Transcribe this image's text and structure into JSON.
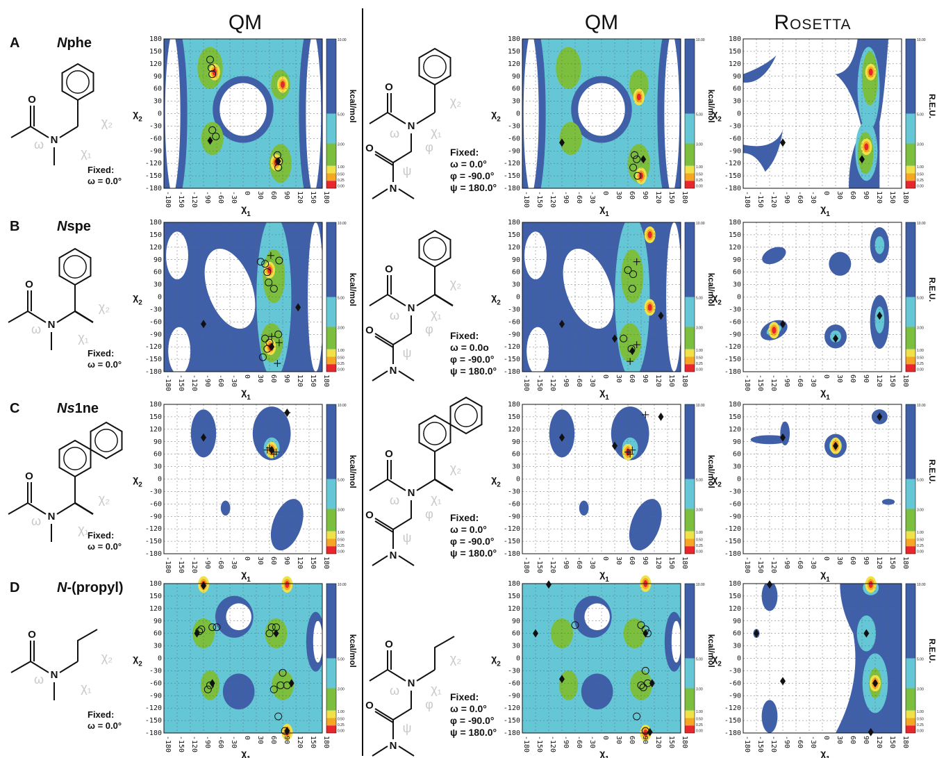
{
  "headers": {
    "qm_left": "QM",
    "qm_right": "QM",
    "rosetta": "Rosetta"
  },
  "rows": [
    {
      "label": "A",
      "name": "Nphe",
      "name_italic": "N",
      "name_rest": "phe",
      "fixed_left": [
        "Fixed:",
        "ω = 0.0°"
      ],
      "fixed_right": [
        "Fixed:",
        "ω = 0.0°",
        "φ = -90.0°",
        "ψ = 180.0°"
      ]
    },
    {
      "label": "B",
      "name": "Nspe",
      "name_italic": "N",
      "name_rest": "spe",
      "fixed_left": [
        "Fixed:",
        "ω = 0.0°"
      ],
      "fixed_right": [
        "Fixed:",
        "ω = 0.0o",
        "φ = -90.0°",
        "ψ = 180.0°"
      ]
    },
    {
      "label": "C",
      "name": "Ns1ne",
      "name_italic": "Ns",
      "name_rest": "1ne",
      "fixed_left": [
        "Fixed:",
        "ω = 0.0°"
      ],
      "fixed_right": [
        "Fixed:",
        "ω = 0.0°",
        "φ = -90.0°",
        "ψ = 180.0°"
      ]
    },
    {
      "label": "D",
      "name": "N-(propyl)",
      "name_italic": "N",
      "name_rest": "-(propyl)",
      "fixed_left": [
        "Fixed:",
        "ω = 0.0°"
      ],
      "fixed_right": [
        "Fixed:",
        "ω = 0.0°",
        "φ = -90.0°",
        "ψ = 180.0°"
      ]
    }
  ],
  "chart_data": {
    "type": "heatmap",
    "description_units": {
      "qm": "kcal/mol",
      "rosetta": "R.E.U."
    },
    "xlabel": "χ1",
    "ylabel": "χ2",
    "xlim": [
      -180,
      180
    ],
    "ylim": [
      -180,
      180
    ],
    "x_ticks": [
      -180,
      -150,
      -120,
      -90,
      -60,
      -30,
      0,
      30,
      60,
      90,
      120,
      150,
      180
    ],
    "y_ticks": [
      180,
      150,
      120,
      90,
      60,
      30,
      0,
      -30,
      -60,
      -90,
      -120,
      -150,
      -180
    ],
    "colorbar_levels": [
      "10.00",
      "5.00",
      "3.00",
      "1.00",
      "0.50",
      "0.25",
      "0.00"
    ],
    "colorbar_colors": [
      "#3f5fa9",
      "#65c6d5",
      "#7cbf3f",
      "#f0e14a",
      "#f5a623",
      "#e8262b"
    ],
    "grid": true,
    "panels": [
      {
        "row": "A",
        "col": "qm_monomer",
        "unit": "kcal/mol",
        "minima": [
          [
            -75,
            -65
          ],
          [
            80,
            -115
          ]
        ],
        "qm_circles": [
          [
            -75,
            130
          ],
          [
            -72,
            110
          ],
          [
            -70,
            95
          ],
          [
            -70,
            -40
          ],
          [
            -62,
            -55
          ],
          [
            78,
            -100
          ],
          [
            82,
            -115
          ],
          [
            80,
            -130
          ]
        ],
        "crosses": [],
        "hotspots": [
          [
            75,
            -118
          ],
          [
            -65,
            100
          ],
          [
            90,
            70
          ]
        ]
      },
      {
        "row": "A",
        "col": "qm_dimer",
        "unit": "kcal/mol",
        "minima": [
          [
            -90,
            -70
          ],
          [
            95,
            -110
          ]
        ],
        "qm_circles": [
          [
            75,
            -100
          ],
          [
            80,
            -110
          ],
          [
            72,
            -130
          ],
          [
            82,
            -150
          ]
        ],
        "crosses": [],
        "hotspots": [
          [
            85,
            40
          ],
          [
            90,
            -150
          ]
        ]
      },
      {
        "row": "A",
        "col": "rosetta",
        "unit": "R.E.U.",
        "minima": [
          [
            -90,
            -70
          ],
          [
            90,
            -110
          ]
        ],
        "qm_circles": [],
        "crosses": [],
        "hotspots": [
          [
            100,
            -80
          ],
          [
            110,
            100
          ]
        ]
      },
      {
        "row": "B",
        "col": "qm_monomer",
        "unit": "kcal/mol",
        "minima": [
          [
            -90,
            -65
          ],
          [
            125,
            -25
          ],
          [
            65,
            -120
          ]
        ],
        "qm_circles": [
          [
            40,
            85
          ],
          [
            50,
            80
          ],
          [
            55,
            60
          ],
          [
            58,
            35
          ],
          [
            70,
            20
          ],
          [
            82,
            88
          ],
          [
            50,
            -100
          ],
          [
            60,
            -110
          ],
          [
            55,
            -125
          ],
          [
            45,
            -145
          ],
          [
            80,
            -90
          ]
        ],
        "crosses": [
          [
            63,
            100
          ],
          [
            82,
            -110
          ],
          [
            78,
            -160
          ],
          [
            65,
            -95
          ]
        ],
        "hotspots": [
          [
            60,
            65
          ],
          [
            62,
            -120
          ]
        ]
      },
      {
        "row": "B",
        "col": "qm_dimer",
        "unit": "kcal/mol",
        "minima": [
          [
            -90,
            -65
          ],
          [
            30,
            -100
          ],
          [
            135,
            -45
          ],
          [
            70,
            -130
          ]
        ],
        "qm_circles": [
          [
            60,
            65
          ],
          [
            72,
            55
          ],
          [
            70,
            20
          ],
          [
            50,
            -100
          ],
          [
            68,
            -125
          ]
        ],
        "crosses": [
          [
            80,
            85
          ],
          [
            80,
            -115
          ],
          [
            65,
            -155
          ]
        ],
        "hotspots": [
          [
            110,
            -25
          ],
          [
            110,
            150
          ]
        ]
      },
      {
        "row": "B",
        "col": "rosetta",
        "unit": "R.E.U.",
        "minima": [
          [
            -90,
            -65
          ],
          [
            30,
            -100
          ],
          [
            130,
            -45
          ]
        ],
        "qm_circles": [],
        "crosses": [],
        "hotspots": [
          [
            -110,
            -80
          ]
        ]
      },
      {
        "row": "C",
        "col": "qm_monomer",
        "unit": "kcal/mol",
        "minima": [
          [
            -90,
            100
          ],
          [
            100,
            160
          ],
          [
            65,
            70
          ]
        ],
        "qm_circles": [],
        "crosses": [
          [
            60,
            75
          ],
          [
            70,
            60
          ],
          [
            55,
            70
          ],
          [
            75,
            65
          ],
          [
            100,
            160
          ]
        ],
        "hotspots": [
          [
            65,
            70
          ]
        ]
      },
      {
        "row": "C",
        "col": "qm_dimer",
        "unit": "kcal/mol",
        "minima": [
          [
            -90,
            100
          ],
          [
            30,
            80
          ],
          [
            135,
            150
          ]
        ],
        "qm_circles": [],
        "crosses": [
          [
            100,
            155
          ],
          [
            60,
            65
          ],
          [
            70,
            70
          ],
          [
            65,
            60
          ]
        ],
        "hotspots": [
          [
            60,
            65
          ]
        ]
      },
      {
        "row": "C",
        "col": "rosetta",
        "unit": "R.E.U.",
        "minima": [
          [
            -90,
            100
          ],
          [
            30,
            80
          ],
          [
            130,
            150
          ]
        ],
        "qm_circles": [],
        "crosses": [],
        "hotspots": [
          [
            30,
            80
          ]
        ]
      },
      {
        "row": "D",
        "col": "qm_monomer",
        "unit": "kcal/mol",
        "minima": [
          [
            -105,
            60
          ],
          [
            -70,
            -60
          ],
          [
            75,
            60
          ],
          [
            110,
            -60
          ],
          [
            -90,
            175
          ],
          [
            100,
            -175
          ]
        ],
        "qm_circles": [
          [
            -100,
            65
          ],
          [
            -95,
            70
          ],
          [
            -70,
            75
          ],
          [
            -60,
            75
          ],
          [
            -75,
            -65
          ],
          [
            -80,
            -75
          ],
          [
            65,
            75
          ],
          [
            75,
            75
          ],
          [
            60,
            60
          ],
          [
            70,
            -75
          ],
          [
            85,
            -65
          ],
          [
            100,
            -65
          ],
          [
            90,
            -35
          ],
          [
            80,
            -140
          ],
          [
            95,
            -175
          ]
        ],
        "crosses": [],
        "hotspots": [
          [
            -90,
            178
          ],
          [
            100,
            178
          ],
          [
            100,
            -178
          ]
        ]
      },
      {
        "row": "D",
        "col": "qm_dimer",
        "unit": "kcal/mol",
        "minima": [
          [
            -150,
            60
          ],
          [
            -90,
            -50
          ],
          [
            100,
            60
          ],
          [
            115,
            -60
          ],
          [
            -120,
            178
          ],
          [
            110,
            -178
          ]
        ],
        "qm_circles": [
          [
            -60,
            80
          ],
          [
            90,
            80
          ],
          [
            100,
            70
          ],
          [
            105,
            60
          ],
          [
            100,
            -30
          ],
          [
            90,
            -65
          ],
          [
            95,
            -70
          ],
          [
            105,
            -60
          ],
          [
            80,
            -140
          ],
          [
            100,
            -175
          ]
        ],
        "crosses": [],
        "hotspots": [
          [
            100,
            180
          ],
          [
            100,
            -180
          ]
        ]
      },
      {
        "row": "D",
        "col": "rosetta",
        "unit": "R.E.U.",
        "minima": [
          [
            -150,
            60
          ],
          [
            -90,
            -55
          ],
          [
            100,
            60
          ],
          [
            120,
            -60
          ],
          [
            -120,
            178
          ],
          [
            110,
            -178
          ]
        ],
        "qm_circles": [],
        "crosses": [],
        "hotspots": [
          [
            120,
            -60
          ],
          [
            110,
            178
          ]
        ]
      }
    ]
  }
}
